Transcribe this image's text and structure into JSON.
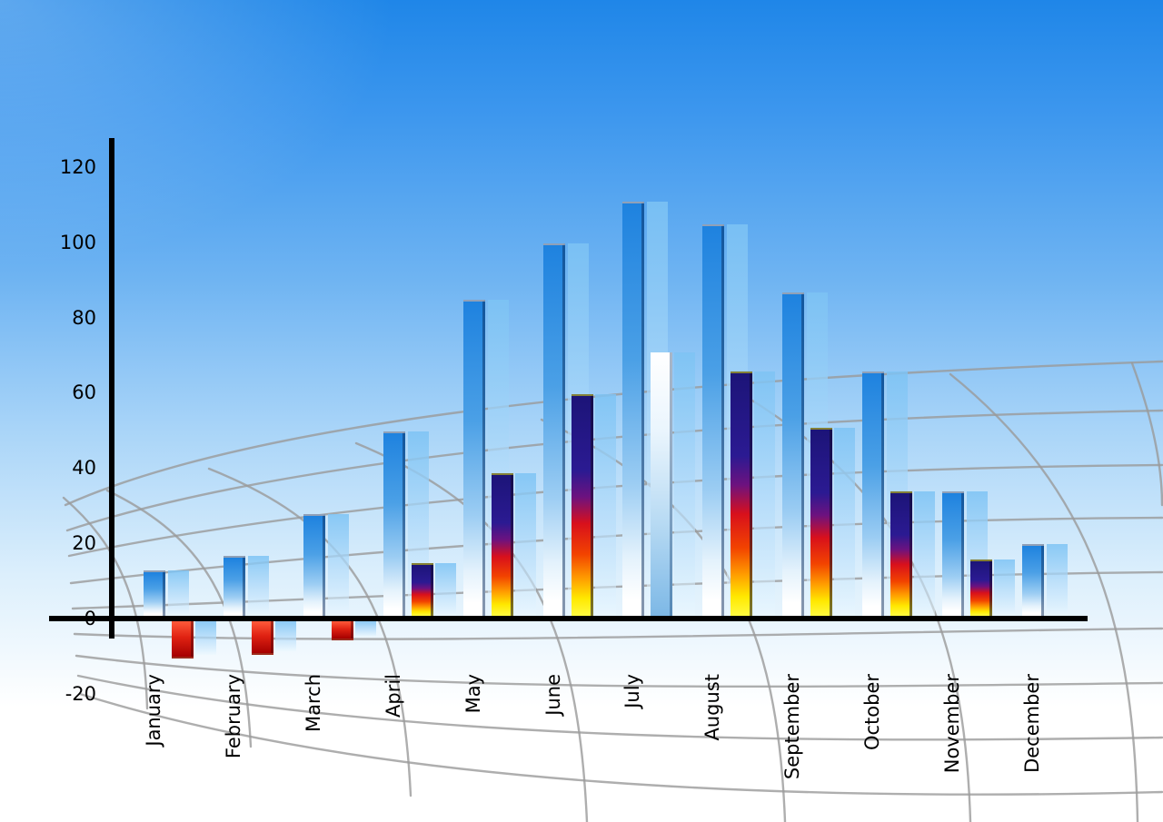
{
  "chart_data": {
    "type": "bar",
    "title": "",
    "xlabel": "",
    "ylabel": "",
    "categories": [
      "January",
      "February",
      "March",
      "April",
      "May",
      "June",
      "July",
      "August",
      "September",
      "October",
      "November",
      "December"
    ],
    "series": [
      {
        "name": "primary-blue-bars",
        "values": [
          12,
          16,
          27,
          49,
          84,
          99,
          110,
          104,
          86,
          65,
          33,
          19
        ]
      },
      {
        "name": "secondary-gradient-bars",
        "values": [
          -10,
          -9,
          -5,
          14,
          38,
          59,
          70,
          65,
          50,
          33,
          15,
          null
        ],
        "styles": [
          "negative",
          "negative",
          "negative",
          "fire",
          "fire",
          "fire",
          "light",
          "fire",
          "fire",
          "fire",
          "fire",
          "none"
        ]
      }
    ],
    "ylim": [
      -20,
      120
    ],
    "yticks": [
      120,
      100,
      80,
      60,
      40,
      20,
      0,
      -20
    ],
    "legend": "none",
    "grid": "curved-perspective-mesh",
    "has_echo_bars": true,
    "x_labels_rotated_degrees": -90
  },
  "colors": {
    "background_top": "#1f86e8",
    "background_bottom": "#ffffff",
    "bar_blue": "#1e82df",
    "bar_echo": "#a9d7f5",
    "fire_navy": "#1c1478",
    "fire_red": "#d8101c",
    "fire_yellow": "#ffe800",
    "negative_red": "#e02212",
    "july_secondary_light": "#7db8e6",
    "axis": "#000000",
    "grid_line": "#9a9a9a",
    "label_text": "#000000"
  }
}
